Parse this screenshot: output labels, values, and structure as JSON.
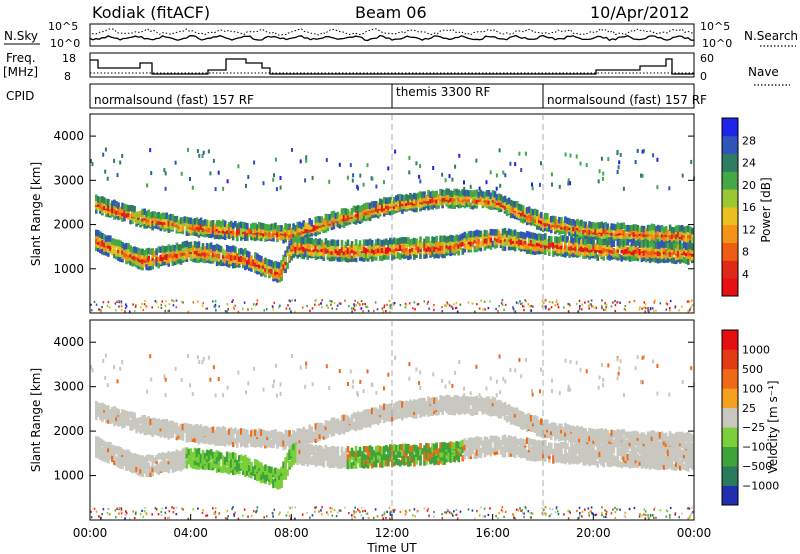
{
  "header": {
    "station": "Kodiak (fitACF)",
    "beam": "Beam 06",
    "date": "10/Apr/2012"
  },
  "strip_labels": {
    "nsky": "N.Sky",
    "nsky_ticks": [
      "10^5",
      "10^0"
    ],
    "nsearch": "N.Search",
    "nsearch_ticks": [
      "10^5",
      "10^0"
    ],
    "freq_line1": "Freq.",
    "freq_line2": "[MHz]",
    "freq_ticks": [
      "18",
      "8"
    ],
    "nave": "Nave",
    "nave_ticks": [
      "60",
      "0"
    ],
    "cpid": "CPID"
  },
  "cpid_segments": [
    {
      "label": "normalsound (fast) 157 RF",
      "start_h": 0,
      "end_h": 12
    },
    {
      "label": "themis 3300 RF",
      "start_h": 12,
      "end_h": 18
    },
    {
      "label": "normalsound (fast) 157 RF",
      "start_h": 18,
      "end_h": 24
    }
  ],
  "chart_data": [
    {
      "type": "heatmap",
      "title": "Power",
      "xlabel": "",
      "ylabel": "Slant Range [km]",
      "xlim_hours": [
        0,
        24
      ],
      "ylim": [
        0,
        4500
      ],
      "y_ticks": [
        1000,
        2000,
        3000,
        4000
      ],
      "colorbar": {
        "label": "Power [dB]",
        "ticks": [
          "4",
          "8",
          "12",
          "16",
          "20",
          "24",
          "28"
        ],
        "colors": [
          "#1f23e6",
          "#2f55b8",
          "#2e7c62",
          "#43a846",
          "#9ac832",
          "#e9c020",
          "#f39418",
          "#ef5c16",
          "#e02a15",
          "#e80f10"
        ]
      },
      "echo_bands": [
        {
          "desc": "upper band",
          "points": [
            [
              0.0,
              2500
            ],
            [
              2.0,
              2150
            ],
            [
              4.0,
              1950
            ],
            [
              6.0,
              1850
            ],
            [
              8.0,
              1800
            ],
            [
              10.0,
              2150
            ],
            [
              12.0,
              2450
            ],
            [
              14.0,
              2600
            ],
            [
              16.0,
              2550
            ],
            [
              18.0,
              2050
            ],
            [
              20.0,
              1850
            ],
            [
              24.0,
              1750
            ]
          ]
        },
        {
          "desc": "lower band",
          "points": [
            [
              0.0,
              1700
            ],
            [
              2.0,
              1200
            ],
            [
              4.0,
              1400
            ],
            [
              6.0,
              1250
            ],
            [
              7.5,
              900
            ],
            [
              8.0,
              1500
            ],
            [
              10.0,
              1400
            ],
            [
              12.0,
              1450
            ],
            [
              14.0,
              1500
            ],
            [
              16.0,
              1700
            ],
            [
              18.0,
              1550
            ],
            [
              20.0,
              1450
            ],
            [
              24.0,
              1350
            ]
          ]
        }
      ]
    },
    {
      "type": "heatmap",
      "title": "Velocity",
      "xlabel": "Time UT",
      "ylabel": "Slant Range [km]",
      "xlim_hours": [
        0,
        24
      ],
      "ylim": [
        0,
        4500
      ],
      "y_ticks": [
        1000,
        2000,
        3000,
        4000
      ],
      "x_ticks": [
        "00:00",
        "04:00",
        "08:00",
        "12:00",
        "16:00",
        "20:00",
        "00:00"
      ],
      "colorbar": {
        "label": "Velocity [m s⁻¹]",
        "ticks": [
          "1000",
          "500",
          "100",
          "25",
          "−25",
          "−100",
          "−500",
          "−1000"
        ],
        "colors": [
          "#1f2fb0",
          "#2a7a5c",
          "#3da33a",
          "#7bcf38",
          "#c8c8c0",
          "#f3a020",
          "#ef6a16",
          "#e23a12",
          "#e60f10"
        ]
      }
    }
  ]
}
